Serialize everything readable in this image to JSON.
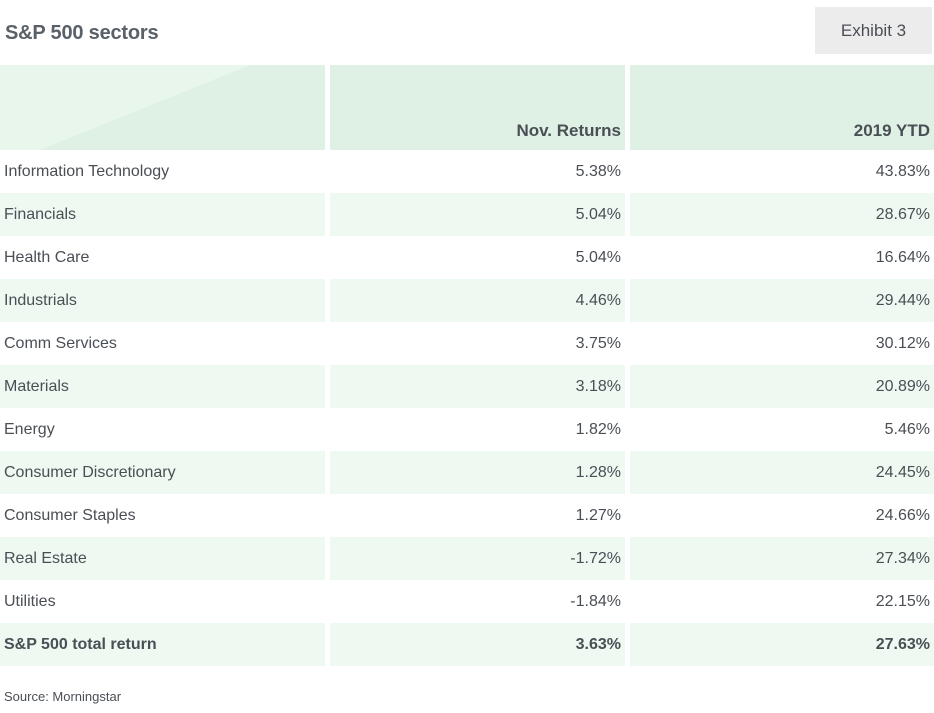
{
  "title": "S&P 500 sectors",
  "exhibit": "Exhibit 3",
  "source": "Source: Morningstar",
  "chart_data": {
    "type": "table",
    "columns": [
      "",
      "Nov. Returns",
      "2019 YTD"
    ],
    "rows": [
      {
        "label": "Information Technology",
        "nov": "5.38%",
        "ytd": "43.83%"
      },
      {
        "label": "Financials",
        "nov": "5.04%",
        "ytd": "28.67%"
      },
      {
        "label": "Health Care",
        "nov": "5.04%",
        "ytd": "16.64%"
      },
      {
        "label": "Industrials",
        "nov": "4.46%",
        "ytd": "29.44%"
      },
      {
        "label": "Comm Services",
        "nov": "3.75%",
        "ytd": "30.12%"
      },
      {
        "label": "Materials",
        "nov": "3.18%",
        "ytd": "20.89%"
      },
      {
        "label": "Energy",
        "nov": "1.82%",
        "ytd": "5.46%"
      },
      {
        "label": "Consumer Discretionary",
        "nov": "1.28%",
        "ytd": "24.45%"
      },
      {
        "label": "Consumer Staples",
        "nov": "1.27%",
        "ytd": "24.66%"
      },
      {
        "label": "Real Estate",
        "nov": "-1.72%",
        "ytd": "27.34%"
      },
      {
        "label": "Utilities",
        "nov": "-1.84%",
        "ytd": "22.15%"
      }
    ],
    "total": {
      "label": "S&P 500 total return",
      "nov": "3.63%",
      "ytd": "27.63%"
    }
  }
}
